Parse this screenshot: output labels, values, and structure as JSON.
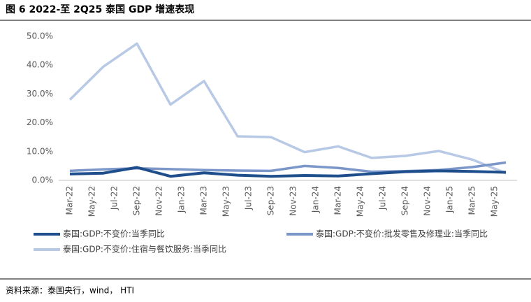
{
  "chart_data": {
    "type": "line",
    "title": "图 6 2022-至 2Q25 泰国 GDP 增速表现",
    "source": "资料来源：泰国央行，wind， HTI",
    "x": [
      "2022-03",
      "2022-06",
      "2022-09",
      "2022-12",
      "2023-03",
      "2023-06",
      "2023-09",
      "2023-12",
      "2024-03",
      "2024-06",
      "2024-09",
      "2024-12",
      "2025-03",
      "2025-06"
    ],
    "xticks": [
      {
        "value": "2022-03",
        "label": "Mar-22"
      },
      {
        "value": "2022-05",
        "label": "May-22"
      },
      {
        "value": "2022-07",
        "label": "Jul-22"
      },
      {
        "value": "2022-09",
        "label": "Sep-22"
      },
      {
        "value": "2022-11",
        "label": "Nov-22"
      },
      {
        "value": "2023-01",
        "label": "Jan-23"
      },
      {
        "value": "2023-03",
        "label": "Mar-23"
      },
      {
        "value": "2023-05",
        "label": "May-23"
      },
      {
        "value": "2023-07",
        "label": "Jul-23"
      },
      {
        "value": "2023-09",
        "label": "Sep-23"
      },
      {
        "value": "2023-11",
        "label": "Nov-23"
      },
      {
        "value": "2024-01",
        "label": "Jan-24"
      },
      {
        "value": "2024-03",
        "label": "Mar-24"
      },
      {
        "value": "2024-05",
        "label": "May-24"
      },
      {
        "value": "2024-07",
        "label": "Jul-24"
      },
      {
        "value": "2024-09",
        "label": "Sep-24"
      },
      {
        "value": "2024-11",
        "label": "Nov-24"
      },
      {
        "value": "2025-01",
        "label": "Jan-25"
      },
      {
        "value": "2025-03",
        "label": "Mar-25"
      },
      {
        "value": "2025-05",
        "label": "May-25"
      }
    ],
    "ylim": [
      0,
      50
    ],
    "yticks": [
      {
        "value": 0,
        "label": "0.0%"
      },
      {
        "value": 10,
        "label": "10.0%"
      },
      {
        "value": 20,
        "label": "20.0%"
      },
      {
        "value": 30,
        "label": "30.0%"
      },
      {
        "value": 40,
        "label": "40.0%"
      },
      {
        "value": 50,
        "label": "50.0%"
      }
    ],
    "grid": false,
    "series": [
      {
        "name": "泰国:GDP:不变价:当季同比",
        "color": "#1f4e8c",
        "values": [
          2.2,
          2.5,
          4.5,
          1.4,
          2.6,
          1.8,
          1.4,
          1.7,
          1.5,
          2.3,
          3.0,
          3.3,
          3.1,
          2.8
        ]
      },
      {
        "name": "泰国:GDP:不变价:批发零售及修理业:当季同比",
        "color": "#7b96c8",
        "values": [
          3.3,
          3.8,
          4.2,
          3.9,
          3.6,
          3.4,
          3.3,
          5.0,
          4.3,
          3.0,
          3.2,
          3.6,
          4.6,
          6.2
        ]
      },
      {
        "name": "泰国:GDP:不变价:住宿与餐饮服务:当季同比",
        "color": "#b8c9e6",
        "values": [
          28.0,
          39.5,
          47.5,
          26.3,
          34.5,
          15.3,
          15.0,
          9.8,
          11.8,
          7.8,
          8.5,
          10.2,
          7.2,
          2.5
        ]
      }
    ]
  }
}
